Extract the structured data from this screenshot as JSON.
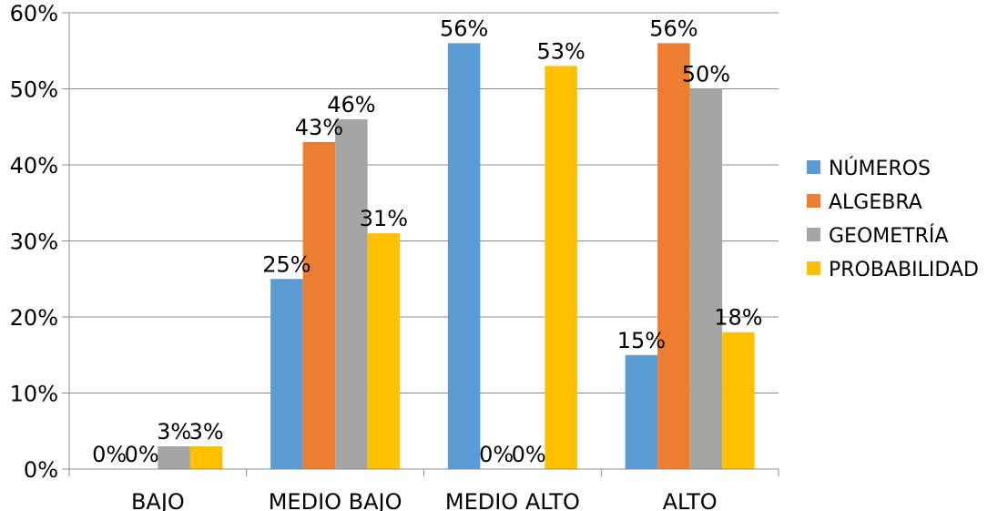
{
  "chart_data": {
    "type": "bar",
    "categories": [
      "BAJO",
      "MEDIO BAJO",
      "MEDIO ALTO",
      "ALTO"
    ],
    "series": [
      {
        "name": "NÚMEROS",
        "values": [
          0,
          25,
          56,
          15
        ],
        "labels": [
          "0%",
          "25%",
          "56%",
          "15%"
        ],
        "color": "#5B9BD5"
      },
      {
        "name": "ALGEBRA",
        "values": [
          0,
          43,
          0,
          56
        ],
        "labels": [
          "0%",
          "43%",
          "0%",
          "56%"
        ],
        "color": "#ED7D31"
      },
      {
        "name": "GEOMETRÍA",
        "values": [
          3,
          46,
          0,
          50
        ],
        "labels": [
          "3%",
          "46%",
          "0%",
          "50%"
        ],
        "color": "#A5A5A5"
      },
      {
        "name": "PROBABILIDAD",
        "values": [
          3,
          31,
          53,
          18
        ],
        "labels": [
          "3%",
          "31%",
          "53%",
          "18%"
        ],
        "color": "#FFC000"
      }
    ],
    "ylim": [
      0,
      60
    ],
    "yticks": [
      "0%",
      "10%",
      "20%",
      "30%",
      "40%",
      "50%",
      "60%"
    ],
    "grid": true,
    "legend_position": "right"
  }
}
